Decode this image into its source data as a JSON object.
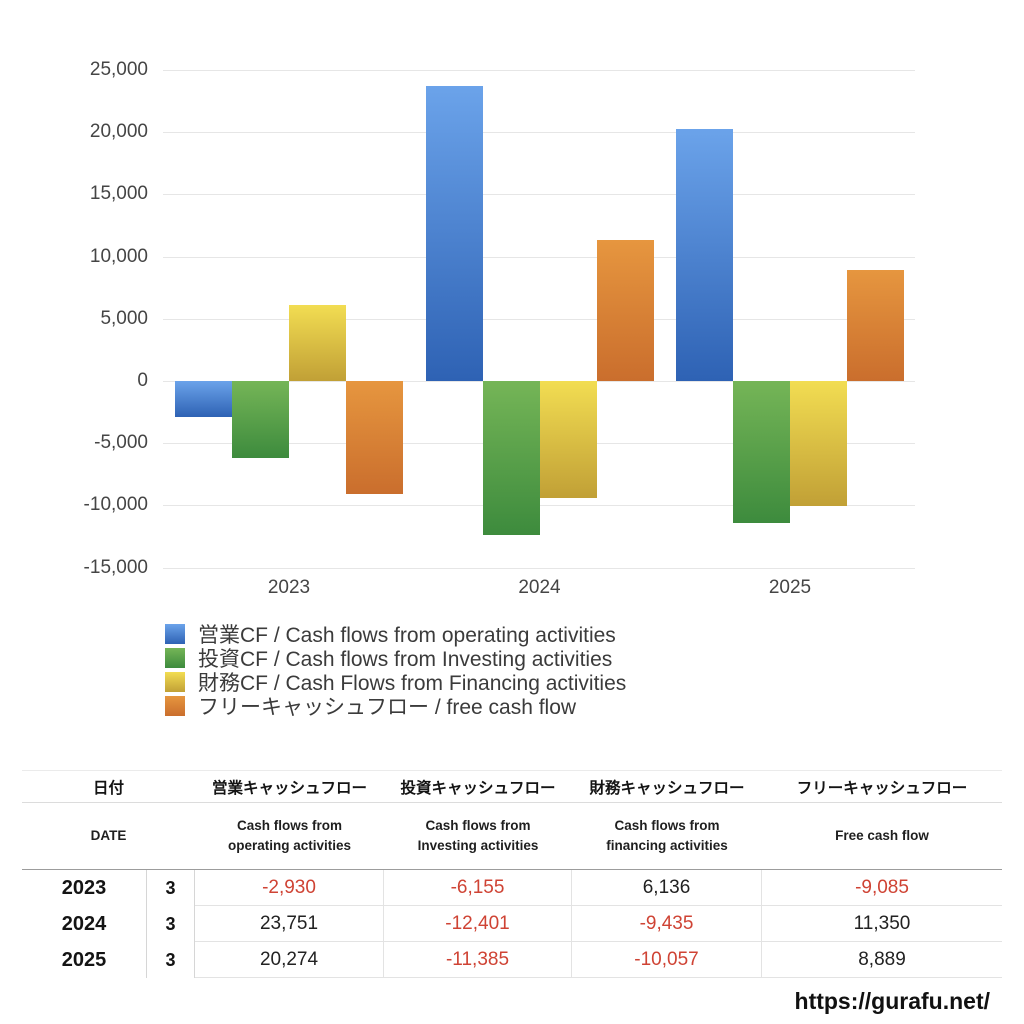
{
  "chart_data": {
    "type": "bar",
    "categories": [
      "2023",
      "2024",
      "2025"
    ],
    "series": [
      {
        "key": "operating",
        "name": "営業CF / Cash flows from operating activities",
        "color_top": "#6ba3ea",
        "color_bottom": "#2e62b4",
        "values": [
          -2930,
          23751,
          20274
        ]
      },
      {
        "key": "investing",
        "name": "投資CF / Cash flows from Investing activities",
        "color_top": "#75b557",
        "color_bottom": "#3d8b3d",
        "values": [
          -6155,
          -12401,
          -11385
        ]
      },
      {
        "key": "financing",
        "name": "財務CF / Cash Flows from Financing activities",
        "color_top": "#f2dd52",
        "color_bottom": "#c1a036",
        "values": [
          6136,
          -9435,
          -10057
        ]
      },
      {
        "key": "free-cash-flow",
        "name": "フリーキャッシュフロー / free cash flow",
        "color_top": "#e6963f",
        "color_bottom": "#ca6e2d",
        "values": [
          -9085,
          11350,
          8889
        ]
      }
    ],
    "title": "",
    "xlabel": "",
    "ylabel": "",
    "ylim": [
      -15000,
      25000
    ],
    "ytick_step": 5000,
    "grid": true,
    "legend_position": "bottom-left"
  },
  "table": {
    "header_jp": {
      "date": "日付",
      "cols": [
        "営業キャッシュフロー",
        "投資キャッシュフロー",
        "財務キャッシュフロー",
        "フリーキャッシュフロー"
      ]
    },
    "header_en": {
      "date": "DATE",
      "cols": [
        [
          "Cash flows from",
          "operating activities"
        ],
        [
          "Cash flows from",
          "Investing activities"
        ],
        [
          "Cash flows from",
          "financing activities"
        ],
        [
          "Free cash flow"
        ]
      ]
    },
    "rows": [
      {
        "year": "2023",
        "month": "3",
        "values": [
          "-2,930",
          "-6,155",
          "6,136",
          "-9,085"
        ]
      },
      {
        "year": "2024",
        "month": "3",
        "values": [
          "23,751",
          "-12,401",
          "-9,435",
          "11,350"
        ]
      },
      {
        "year": "2025",
        "month": "3",
        "values": [
          "20,274",
          "-11,385",
          "-10,057",
          "8,889"
        ]
      }
    ]
  },
  "footer": {
    "url": "https://gurafu.net/"
  },
  "colors": {
    "negative_value": "#cf4334",
    "positive_value": "#222222",
    "gridline": "#e6e6e6",
    "axis_text": "#454545",
    "legend_text": "#3b3b3b"
  }
}
